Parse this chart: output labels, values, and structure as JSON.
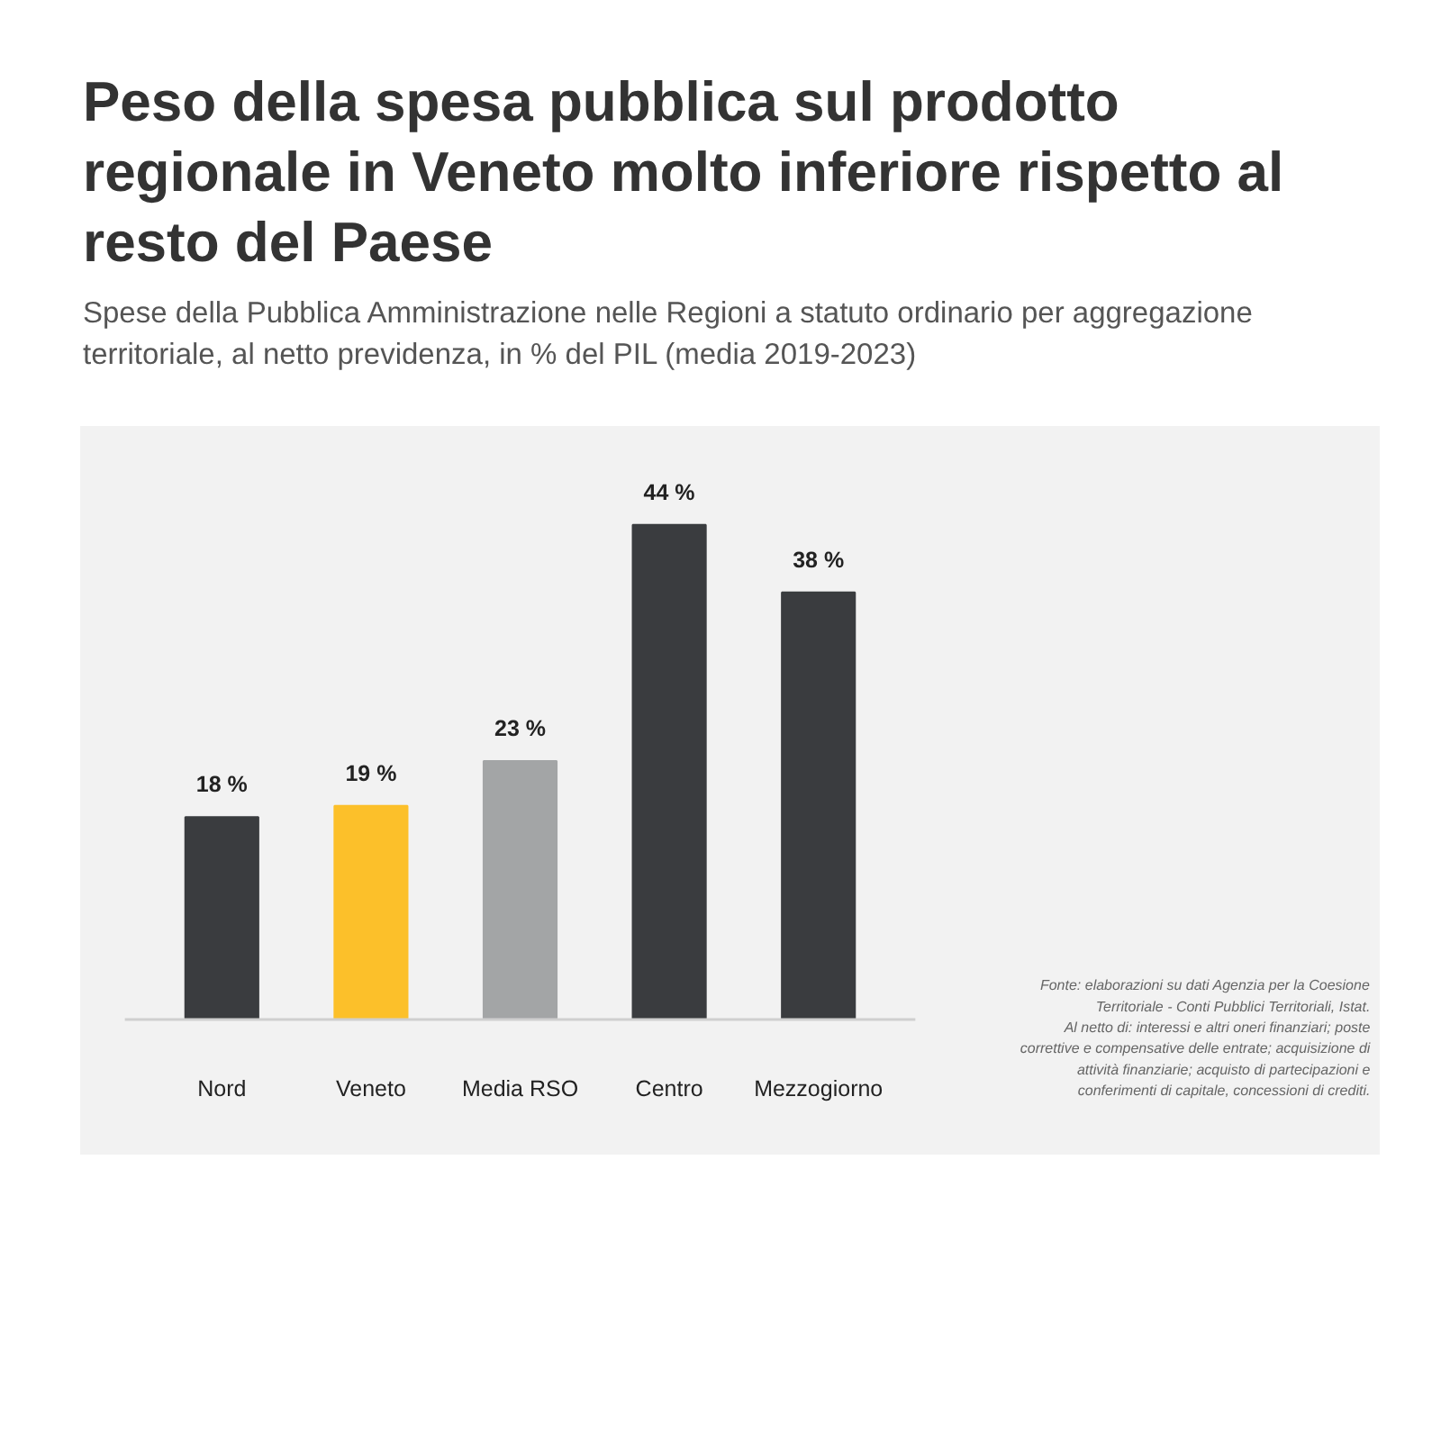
{
  "chart_data": {
    "type": "bar",
    "title": "Peso della spesa pubblica sul prodotto regionale in Veneto molto inferiore rispetto al resto del Paese",
    "subtitle": "Spese della Pubblica Amministrazione nelle Regioni a statuto ordinario per aggregazione territoriale, al netto previdenza, in % del PIL (media 2019-2023)",
    "categories": [
      "Nord",
      "Veneto",
      "Media RSO",
      "Centro",
      "Mezzogiorno"
    ],
    "values": [
      18,
      19,
      23,
      44,
      38
    ],
    "value_labels": [
      "18 %",
      "19 %",
      "23 %",
      "44 %",
      "38 %"
    ],
    "colors": [
      "#3a3c3f",
      "#fcc02a",
      "#a3a5a6",
      "#3a3c3f",
      "#3a3c3f"
    ],
    "annotations": [
      "Fonte: elaborazioni su dati Agenzia per la Coesione Territoriale - Conti Pubblici Territoriali, Istat.",
      "Al netto di: interessi e altri oneri finanziari; poste correttive e compensative delle entrate; acquisizione di attività finanziarie; acquisto di partecipazioni e conferimenti di capitale, concessioni di crediti."
    ]
  }
}
